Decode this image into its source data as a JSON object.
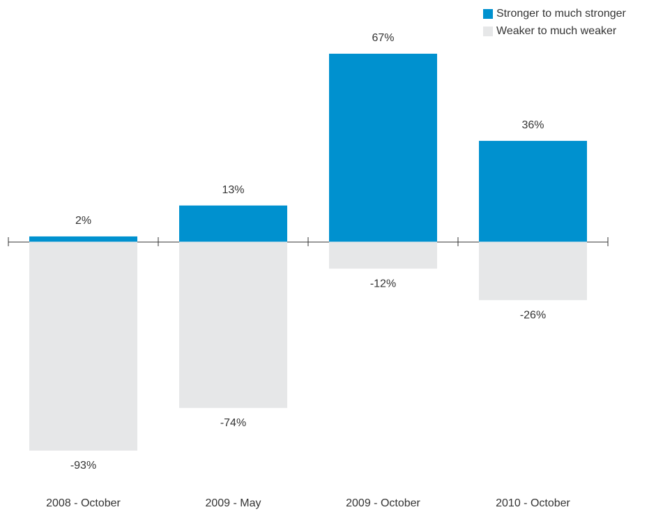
{
  "chart_data": {
    "type": "bar",
    "categories": [
      "2008 - October",
      "2009 - May",
      "2009 - October",
      "2010 - October"
    ],
    "series": [
      {
        "name": "Stronger to much stronger",
        "color": "#0091cf",
        "values": [
          2,
          13,
          67,
          36
        ],
        "value_labels": [
          "2%",
          "13%",
          "67%",
          "36%"
        ]
      },
      {
        "name": "Weaker to much weaker",
        "color": "#e6e7e8",
        "axis": "y2",
        "values": [
          -93,
          -74,
          -12,
          -26
        ],
        "value_labels": [
          "-93%",
          "-74%",
          "-12%",
          "-26%"
        ]
      }
    ],
    "ylim": [
      -74.2,
      67
    ],
    "y2lim": [
      -93,
      83.7
    ],
    "legend": "top-right"
  }
}
